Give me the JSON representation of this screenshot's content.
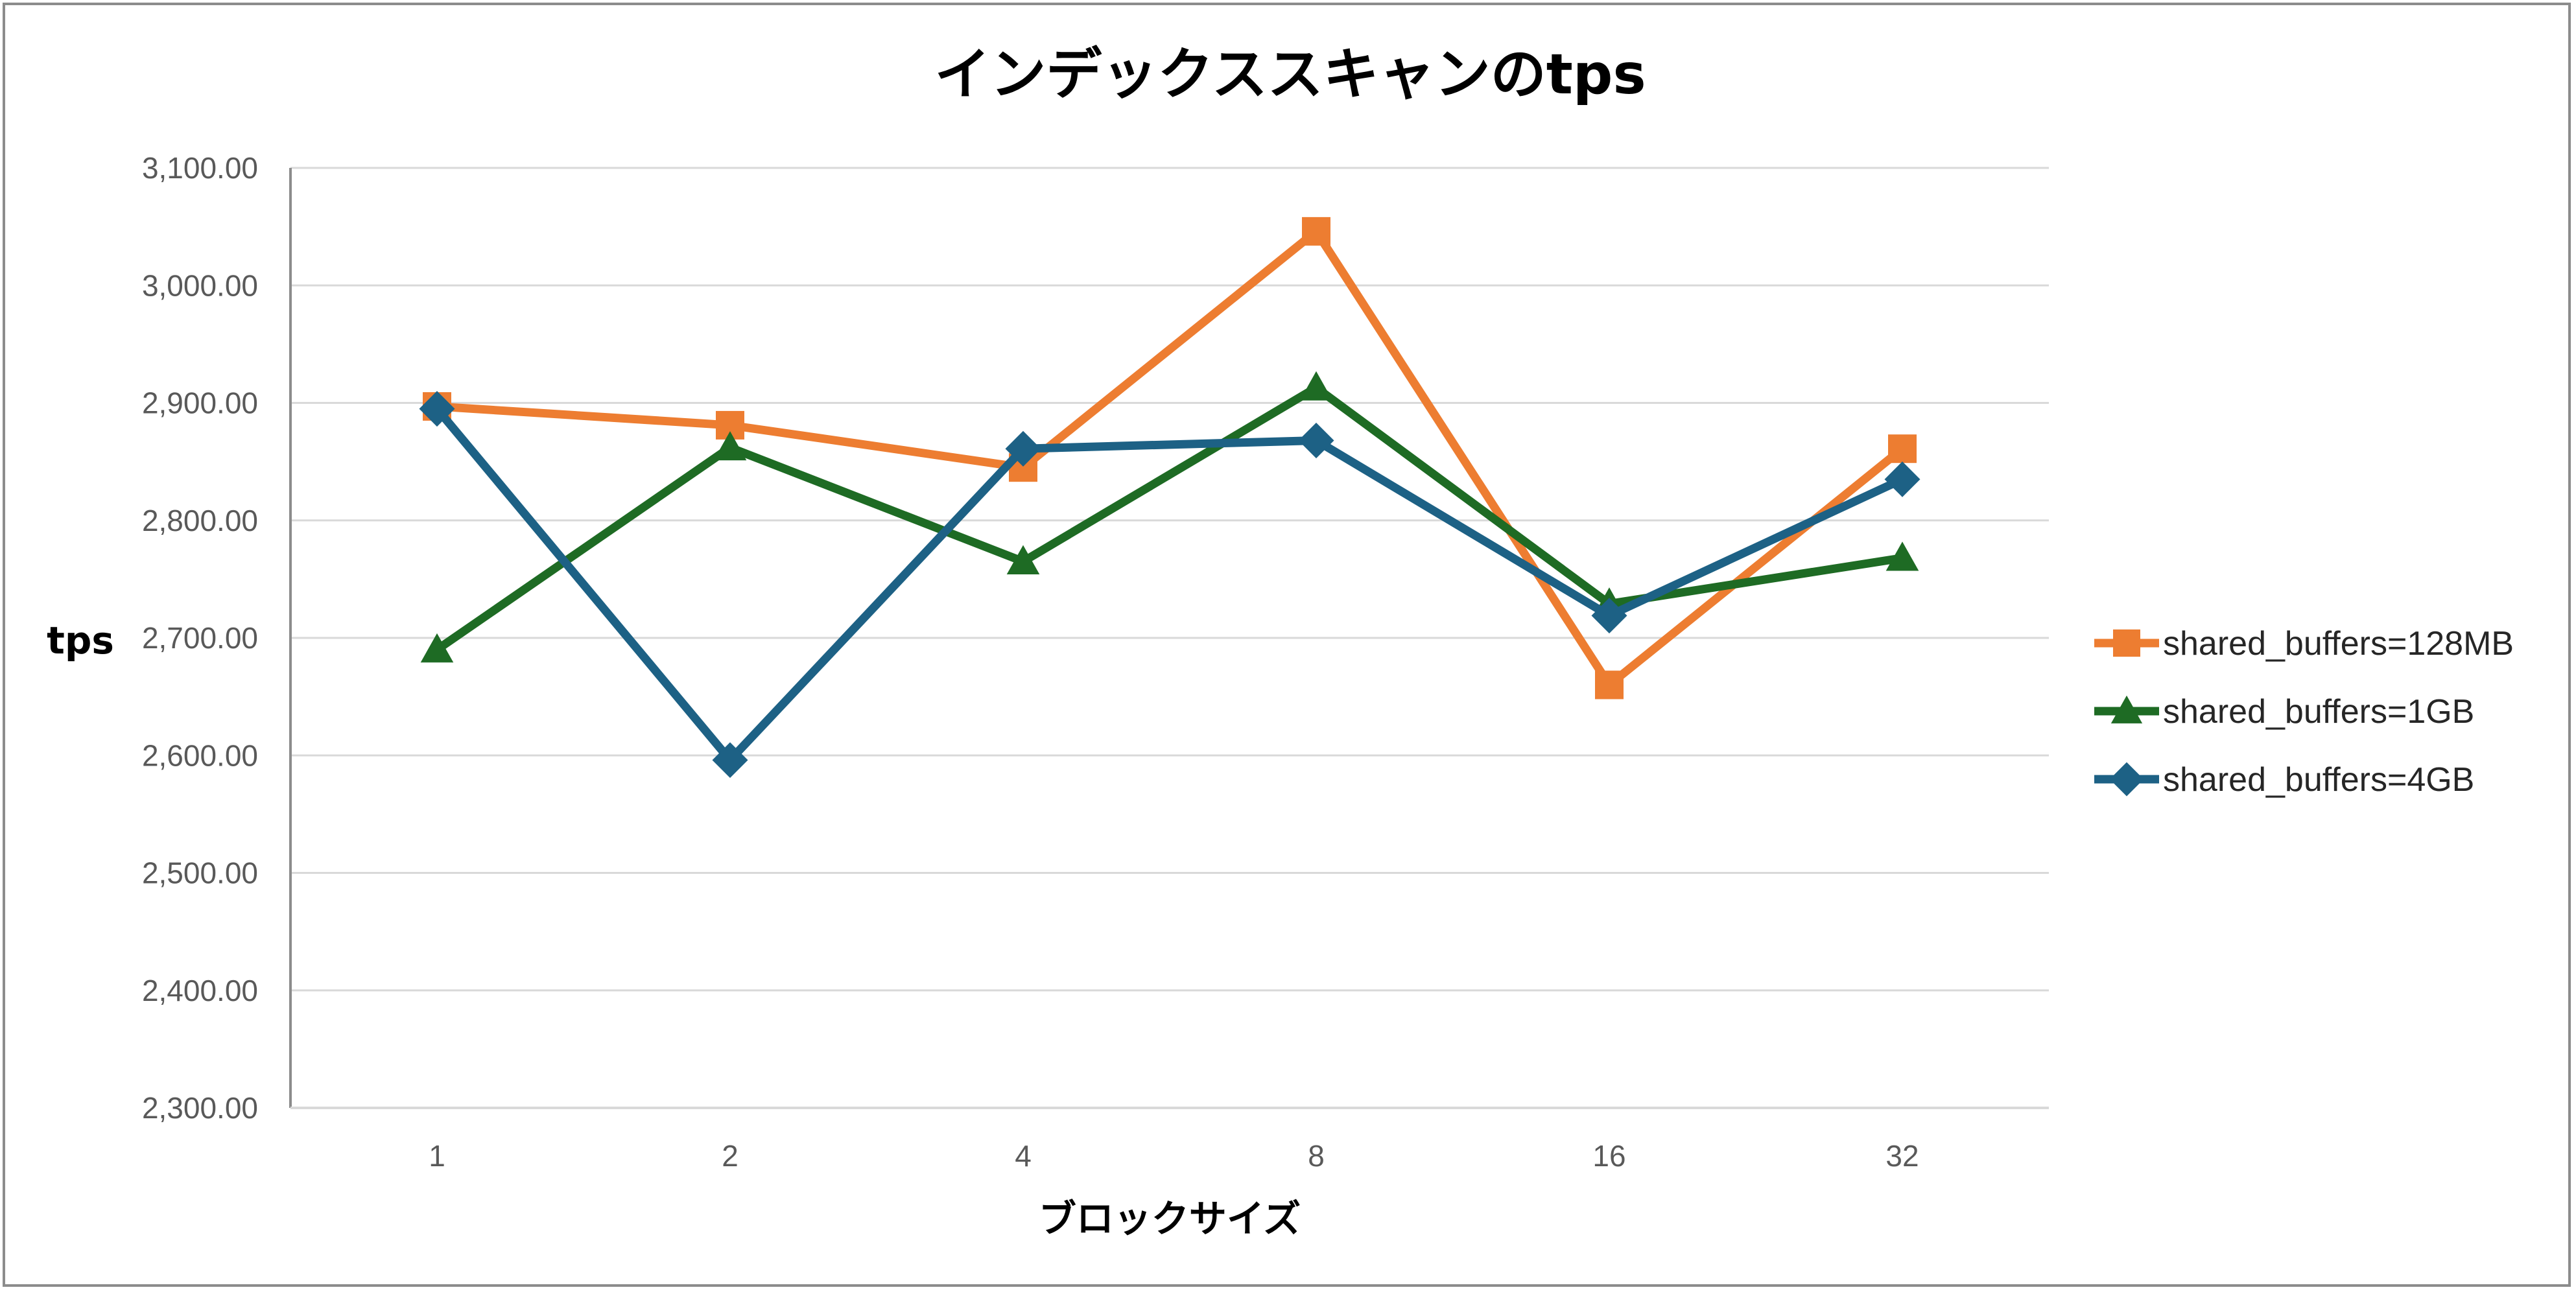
{
  "chart_data": {
    "type": "line",
    "title": "インデックススキャンのtps",
    "xlabel": "ブロックサイズ",
    "ylabel": "tps",
    "categories": [
      "1",
      "2",
      "4",
      "8",
      "16",
      "32"
    ],
    "ylim": [
      2300,
      3100
    ],
    "yticks": [
      "2,300.00",
      "2,400.00",
      "2,500.00",
      "2,600.00",
      "2,700.00",
      "2,800.00",
      "2,900.00",
      "3,000.00",
      "3,100.00"
    ],
    "grid": true,
    "legend_position": "right",
    "series": [
      {
        "name": "shared_buffers=128MB",
        "color": "#ed7d31",
        "marker": "square",
        "values": [
          2897,
          2881,
          2845,
          3046,
          2660,
          2861
        ]
      },
      {
        "name": "shared_buffers=1GB",
        "color": "#1e6b24",
        "marker": "triangle",
        "values": [
          2690,
          2862,
          2765,
          2913,
          2729,
          2768
        ]
      },
      {
        "name": "shared_buffers=4GB",
        "color": "#1d6185",
        "marker": "diamond",
        "values": [
          2895,
          2596,
          2861,
          2868,
          2719,
          2835
        ]
      }
    ]
  }
}
